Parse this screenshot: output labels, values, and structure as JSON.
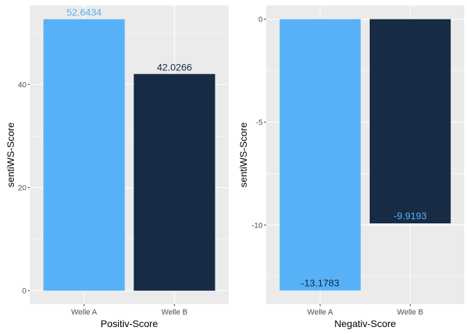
{
  "colors": {
    "welle_a": "#56B1F7",
    "welle_b": "#172B45"
  },
  "chart_data": [
    {
      "type": "bar",
      "categories": [
        "Welle A",
        "Welle B"
      ],
      "values": [
        52.6434,
        42.0266
      ],
      "value_labels": [
        "52.6434",
        "42.0266"
      ],
      "xlabel": "Positiv-Score",
      "ylabel": "sentiWS-Score",
      "ylim": [
        -2.6,
        55.3
      ],
      "yticks": [
        0,
        20,
        40
      ],
      "ytick_labels": [
        "0",
        "20",
        "40"
      ],
      "grid": true,
      "legend": "none"
    },
    {
      "type": "bar",
      "categories": [
        "Welle A",
        "Welle B"
      ],
      "values": [
        -13.1783,
        -9.9193
      ],
      "value_labels": [
        "-13.1783",
        "-9.9193"
      ],
      "xlabel": "Negativ-Score",
      "ylabel": "sentiWS-Score",
      "ylim": [
        -13.84,
        0.66
      ],
      "yticks": [
        -10,
        -5,
        0
      ],
      "ytick_labels": [
        "-10",
        "-5",
        "0"
      ],
      "grid": true,
      "legend": "none"
    }
  ]
}
